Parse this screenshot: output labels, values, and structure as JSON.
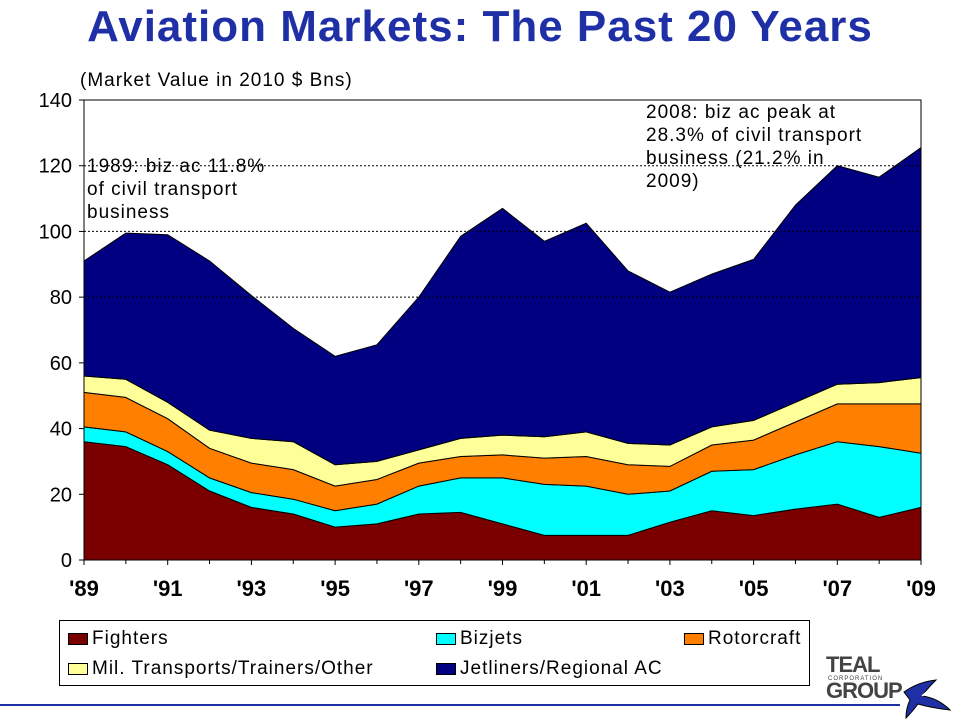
{
  "title": "Aviation Markets: The Past 20 Years",
  "subtitle": "(Market Value in 2010 $ Bns)",
  "annotations": {
    "left": "1989: biz ac 11.8%\nof civil transport\nbusiness",
    "right": "2008: biz ac peak at\n28.3% of civil transport\nbusiness (21.2% in\n2009)"
  },
  "logo": {
    "name": "TEAL GROUP",
    "sub": "CORPORATION"
  },
  "colors": {
    "fighters": "#7a0000",
    "bizjets": "#00ffff",
    "rotorcraft": "#ff8000",
    "mil_transports": "#ffff99",
    "jetliners": "#000080"
  },
  "chart_data": {
    "type": "area",
    "stacked": true,
    "title": "Aviation Markets: The Past 20 Years",
    "ylabel": "(Market Value in 2010 $ Bns)",
    "ylim": [
      0,
      140
    ],
    "yticks": [
      0,
      20,
      40,
      60,
      80,
      100,
      120,
      140
    ],
    "gridlines": [
      80,
      100,
      120
    ],
    "years": [
      1989,
      1990,
      1991,
      1992,
      1993,
      1994,
      1995,
      1996,
      1997,
      1998,
      1999,
      2000,
      2001,
      2002,
      2003,
      2004,
      2005,
      2006,
      2007,
      2008,
      2009
    ],
    "xtick_labels": [
      "'89",
      "'91",
      "'93",
      "'95",
      "'97",
      "'99",
      "'01",
      "'03",
      "'05",
      "'07",
      "'09"
    ],
    "legend_position": "bottom",
    "series": [
      {
        "name": "Fighters",
        "key": "fighters",
        "values": [
          36,
          34.5,
          29,
          21,
          16,
          14,
          10,
          11,
          14,
          14.5,
          11,
          7.5,
          7.5,
          7.5,
          11.5,
          15,
          13.5,
          15.5,
          17,
          13,
          16
        ]
      },
      {
        "name": "Bizjets",
        "key": "bizjets",
        "values": [
          4.5,
          4.5,
          4,
          4,
          4.5,
          4.5,
          5,
          6,
          8.5,
          10.5,
          14,
          15.5,
          15,
          12.5,
          9.5,
          12,
          14,
          16.5,
          19,
          21.5,
          16.5
        ]
      },
      {
        "name": "Rotorcraft",
        "key": "rotorcraft",
        "values": [
          10.5,
          10.5,
          10,
          9,
          9,
          9,
          7.5,
          7.5,
          7,
          6.5,
          7,
          8,
          9,
          9,
          7.5,
          8,
          9,
          10,
          11.5,
          13,
          15
        ]
      },
      {
        "name": "Mil. Transports/Trainers/Other",
        "key": "mil_transports",
        "values": [
          5,
          5.5,
          5,
          5.5,
          7.5,
          8.5,
          6.5,
          5.5,
          4,
          5.5,
          6,
          6.5,
          7.5,
          6.5,
          6.5,
          5.5,
          6,
          6,
          6,
          6.5,
          8
        ]
      },
      {
        "name": "Jetliners/Regional AC",
        "key": "jetliners",
        "values": [
          35,
          44.5,
          51,
          51.5,
          43.5,
          34.5,
          33,
          35.5,
          46.5,
          61.5,
          69,
          59.5,
          63.5,
          52.5,
          46.5,
          46.5,
          49,
          60,
          66.5,
          62.5,
          70
        ]
      }
    ]
  }
}
